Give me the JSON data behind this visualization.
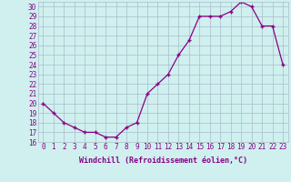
{
  "x": [
    0,
    1,
    2,
    3,
    4,
    5,
    6,
    7,
    8,
    9,
    10,
    11,
    12,
    13,
    14,
    15,
    16,
    17,
    18,
    19,
    20,
    21,
    22,
    23
  ],
  "y": [
    20,
    19,
    18,
    17.5,
    17,
    17,
    16.5,
    16.5,
    17.5,
    18,
    21,
    22,
    23,
    25,
    26.5,
    29,
    29,
    29,
    29.5,
    30.5,
    30,
    28,
    28,
    24
  ],
  "line_color": "#880088",
  "marker": "+",
  "marker_size": 3,
  "marker_lw": 1.0,
  "line_width": 0.9,
  "bg_color": "#cff0ee",
  "grid_color": "#aabbcc",
  "ylim": [
    16,
    30.5
  ],
  "yticks": [
    16,
    17,
    18,
    19,
    20,
    21,
    22,
    23,
    24,
    25,
    26,
    27,
    28,
    29,
    30
  ],
  "xlim": [
    -0.5,
    23.5
  ],
  "xlabel": "Windchill (Refroidissement éolien,°C)",
  "xlabel_color": "#880088",
  "tick_color": "#880088",
  "tick_fontsize": 5.5,
  "xlabel_fontsize": 6.0
}
